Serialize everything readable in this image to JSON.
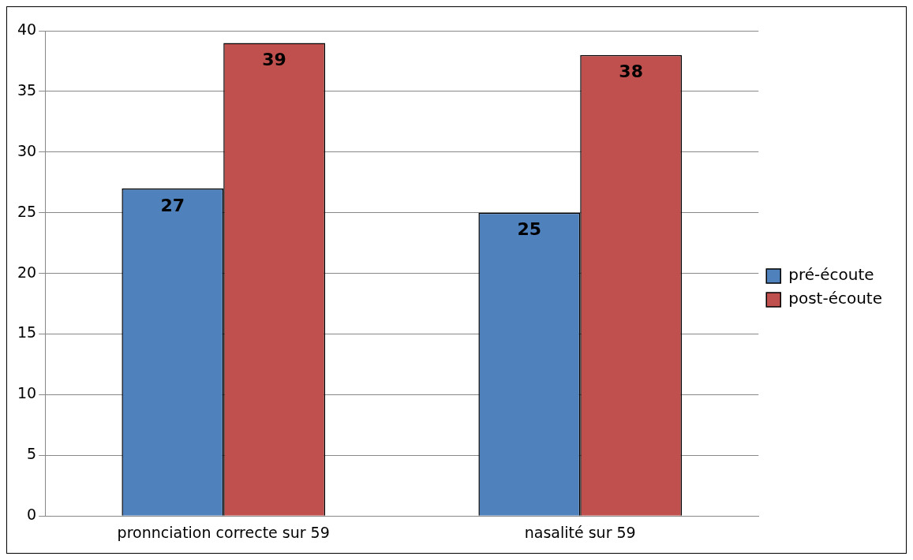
{
  "chart_data": {
    "type": "bar",
    "categories": [
      "pronnciation correcte sur 59",
      "nasalité sur 59"
    ],
    "series": [
      {
        "name": "pré-écoute",
        "color": "#4f81bd",
        "values": [
          27,
          25
        ]
      },
      {
        "name": "post-écoute",
        "color": "#c0504d",
        "values": [
          39,
          38
        ]
      }
    ],
    "ylim": [
      0,
      40
    ],
    "yticks": [
      0,
      5,
      10,
      15,
      20,
      25,
      30,
      35,
      40
    ],
    "grid": "y",
    "legend": "right",
    "data_labels": true
  }
}
